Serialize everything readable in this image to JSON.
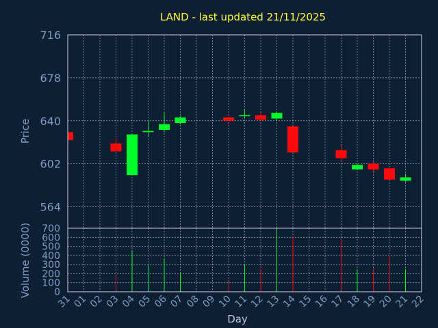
{
  "chart_data": {
    "type": "candlestick",
    "title": "LAND - last updated 21/11/2025",
    "ylabel": "Price",
    "xlabel": "Day",
    "volume_label": "Volume (0000)",
    "price_ylim": [
      545,
      716
    ],
    "price_ticks": [
      "716",
      "678",
      "640",
      "602",
      "564"
    ],
    "price_tick_values": [
      716,
      678,
      640,
      602,
      564
    ],
    "volume_ylim": [
      0,
      700
    ],
    "volume_ticks": [
      "700",
      "600",
      "500",
      "400",
      "300",
      "200",
      "100",
      "0"
    ],
    "volume_tick_values": [
      700,
      600,
      500,
      400,
      300,
      200,
      100,
      0
    ],
    "x_labels": [
      "31",
      "01",
      "02",
      "03",
      "04",
      "05",
      "06",
      "07",
      "08",
      "09",
      "10",
      "11",
      "12",
      "13",
      "14",
      "15",
      "16",
      "17",
      "18",
      "19",
      "20",
      "21",
      "22"
    ],
    "candles": [
      {
        "i": 0,
        "open": 630,
        "close": 623,
        "high": 630,
        "low": 622,
        "volume": 0
      },
      {
        "i": 3,
        "open": 620,
        "close": 613,
        "high": 625,
        "low": 613,
        "volume": 180
      },
      {
        "i": 4,
        "open": 592,
        "close": 628,
        "high": 628,
        "low": 592,
        "volume": 460
      },
      {
        "i": 5,
        "open": 630,
        "close": 631,
        "high": 640,
        "low": 626,
        "volume": 290
      },
      {
        "i": 6,
        "open": 632,
        "close": 637,
        "high": 647,
        "low": 630,
        "volume": 370
      },
      {
        "i": 7,
        "open": 638,
        "close": 643,
        "high": 644,
        "low": 637,
        "volume": 200
      },
      {
        "i": 10,
        "open": 643,
        "close": 640,
        "high": 644,
        "low": 640,
        "volume": 110
      },
      {
        "i": 11,
        "open": 644,
        "close": 645,
        "high": 650,
        "low": 642,
        "volume": 300
      },
      {
        "i": 12,
        "open": 645,
        "close": 641,
        "high": 647,
        "low": 640,
        "volume": 250
      },
      {
        "i": 13,
        "open": 642,
        "close": 647,
        "high": 648,
        "low": 641,
        "volume": 700
      },
      {
        "i": 14,
        "open": 635,
        "close": 612,
        "high": 635,
        "low": 612,
        "volume": 610
      },
      {
        "i": 17,
        "open": 614,
        "close": 607,
        "high": 618,
        "low": 604,
        "volume": 580
      },
      {
        "i": 18,
        "open": 597,
        "close": 601,
        "high": 602,
        "low": 597,
        "volume": 250
      },
      {
        "i": 19,
        "open": 602,
        "close": 597,
        "high": 604,
        "low": 595,
        "volume": 240
      },
      {
        "i": 20,
        "open": 598,
        "close": 588,
        "high": 598,
        "low": 588,
        "volume": 400
      },
      {
        "i": 21,
        "open": 587,
        "close": 590,
        "high": 593,
        "low": 586,
        "volume": 250
      }
    ],
    "colors": {
      "background": "#0f1f33",
      "up": "#00ff2a",
      "down": "#ff0a0a",
      "title": "#ffff33",
      "axis_text": "#7b9ec3",
      "frame": "#c6d0dc",
      "grid": "#c6d0dc"
    },
    "grid": true
  }
}
